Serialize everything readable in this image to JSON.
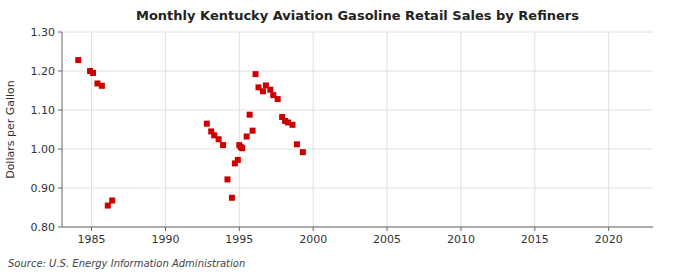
{
  "chart_data": {
    "type": "scatter",
    "title": "Monthly Kentucky Aviation Gasoline Retail Sales by Refiners",
    "ylabel": "Dollars per Gallon",
    "source": "Source: U.S. Energy Information Administration",
    "color": "#cc0000",
    "marker": "square",
    "grid": true,
    "xlim": [
      1983,
      2023
    ],
    "ylim": [
      0.8,
      1.3
    ],
    "xticks": [
      1985,
      1990,
      1995,
      2000,
      2005,
      2010,
      2015,
      2020
    ],
    "yticks": [
      {
        "value": 0.8,
        "label": "0.80"
      },
      {
        "value": 0.9,
        "label": "0.90"
      },
      {
        "value": 1.0,
        "label": "1.00"
      },
      {
        "value": 1.1,
        "label": "1.10"
      },
      {
        "value": 1.2,
        "label": "1.20"
      },
      {
        "value": 1.3,
        "label": "1.30"
      }
    ],
    "x": [
      1984.1,
      1984.9,
      1985.1,
      1985.4,
      1985.7,
      1986.1,
      1986.4,
      1992.8,
      1993.1,
      1993.3,
      1993.6,
      1993.9,
      1994.2,
      1994.5,
      1994.7,
      1994.9,
      1995.0,
      1995.1,
      1995.2,
      1995.5,
      1995.7,
      1995.9,
      1996.1,
      1996.3,
      1996.6,
      1996.8,
      1997.1,
      1997.3,
      1997.6,
      1997.9,
      1998.1,
      1998.3,
      1998.6,
      1998.9,
      1999.3
    ],
    "values": [
      1.228,
      1.2,
      1.195,
      1.168,
      1.162,
      0.855,
      0.868,
      1.065,
      1.045,
      1.035,
      1.025,
      1.01,
      0.922,
      0.875,
      0.963,
      0.972,
      1.01,
      1.005,
      1.002,
      1.032,
      1.088,
      1.047,
      1.192,
      1.158,
      1.148,
      1.163,
      1.152,
      1.138,
      1.128,
      1.082,
      1.072,
      1.068,
      1.062,
      1.012,
      0.992
    ]
  }
}
